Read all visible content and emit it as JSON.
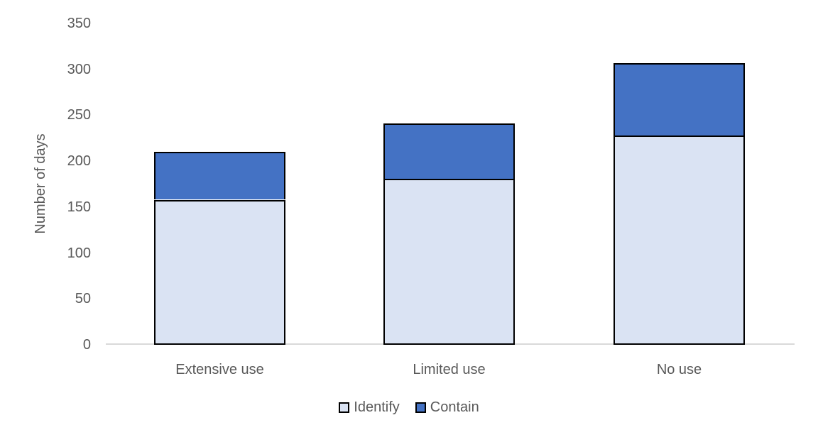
{
  "chart_data": {
    "type": "bar",
    "variant": "stacked-column",
    "title": "",
    "ylabel": "Number of days",
    "xlabel": "",
    "categories": [
      "Extensive use",
      "Limited use",
      "No use"
    ],
    "series": [
      {
        "name": "Identify",
        "color": "#dae3f3",
        "values": [
          158,
          181,
          228
        ]
      },
      {
        "name": "Contain",
        "color": "#4472c4",
        "values": [
          52,
          60,
          79
        ]
      }
    ],
    "stack_totals": [
      210,
      241,
      307
    ],
    "y_ticks": [
      0,
      50,
      100,
      150,
      200,
      250,
      300,
      350
    ],
    "ylim": [
      0,
      350
    ],
    "grid": false,
    "legend_position": "bottom",
    "colors": {
      "bar_border": "#000000",
      "axis_line": "#d9d9d9",
      "text": "#595959",
      "background": "#ffffff"
    }
  }
}
